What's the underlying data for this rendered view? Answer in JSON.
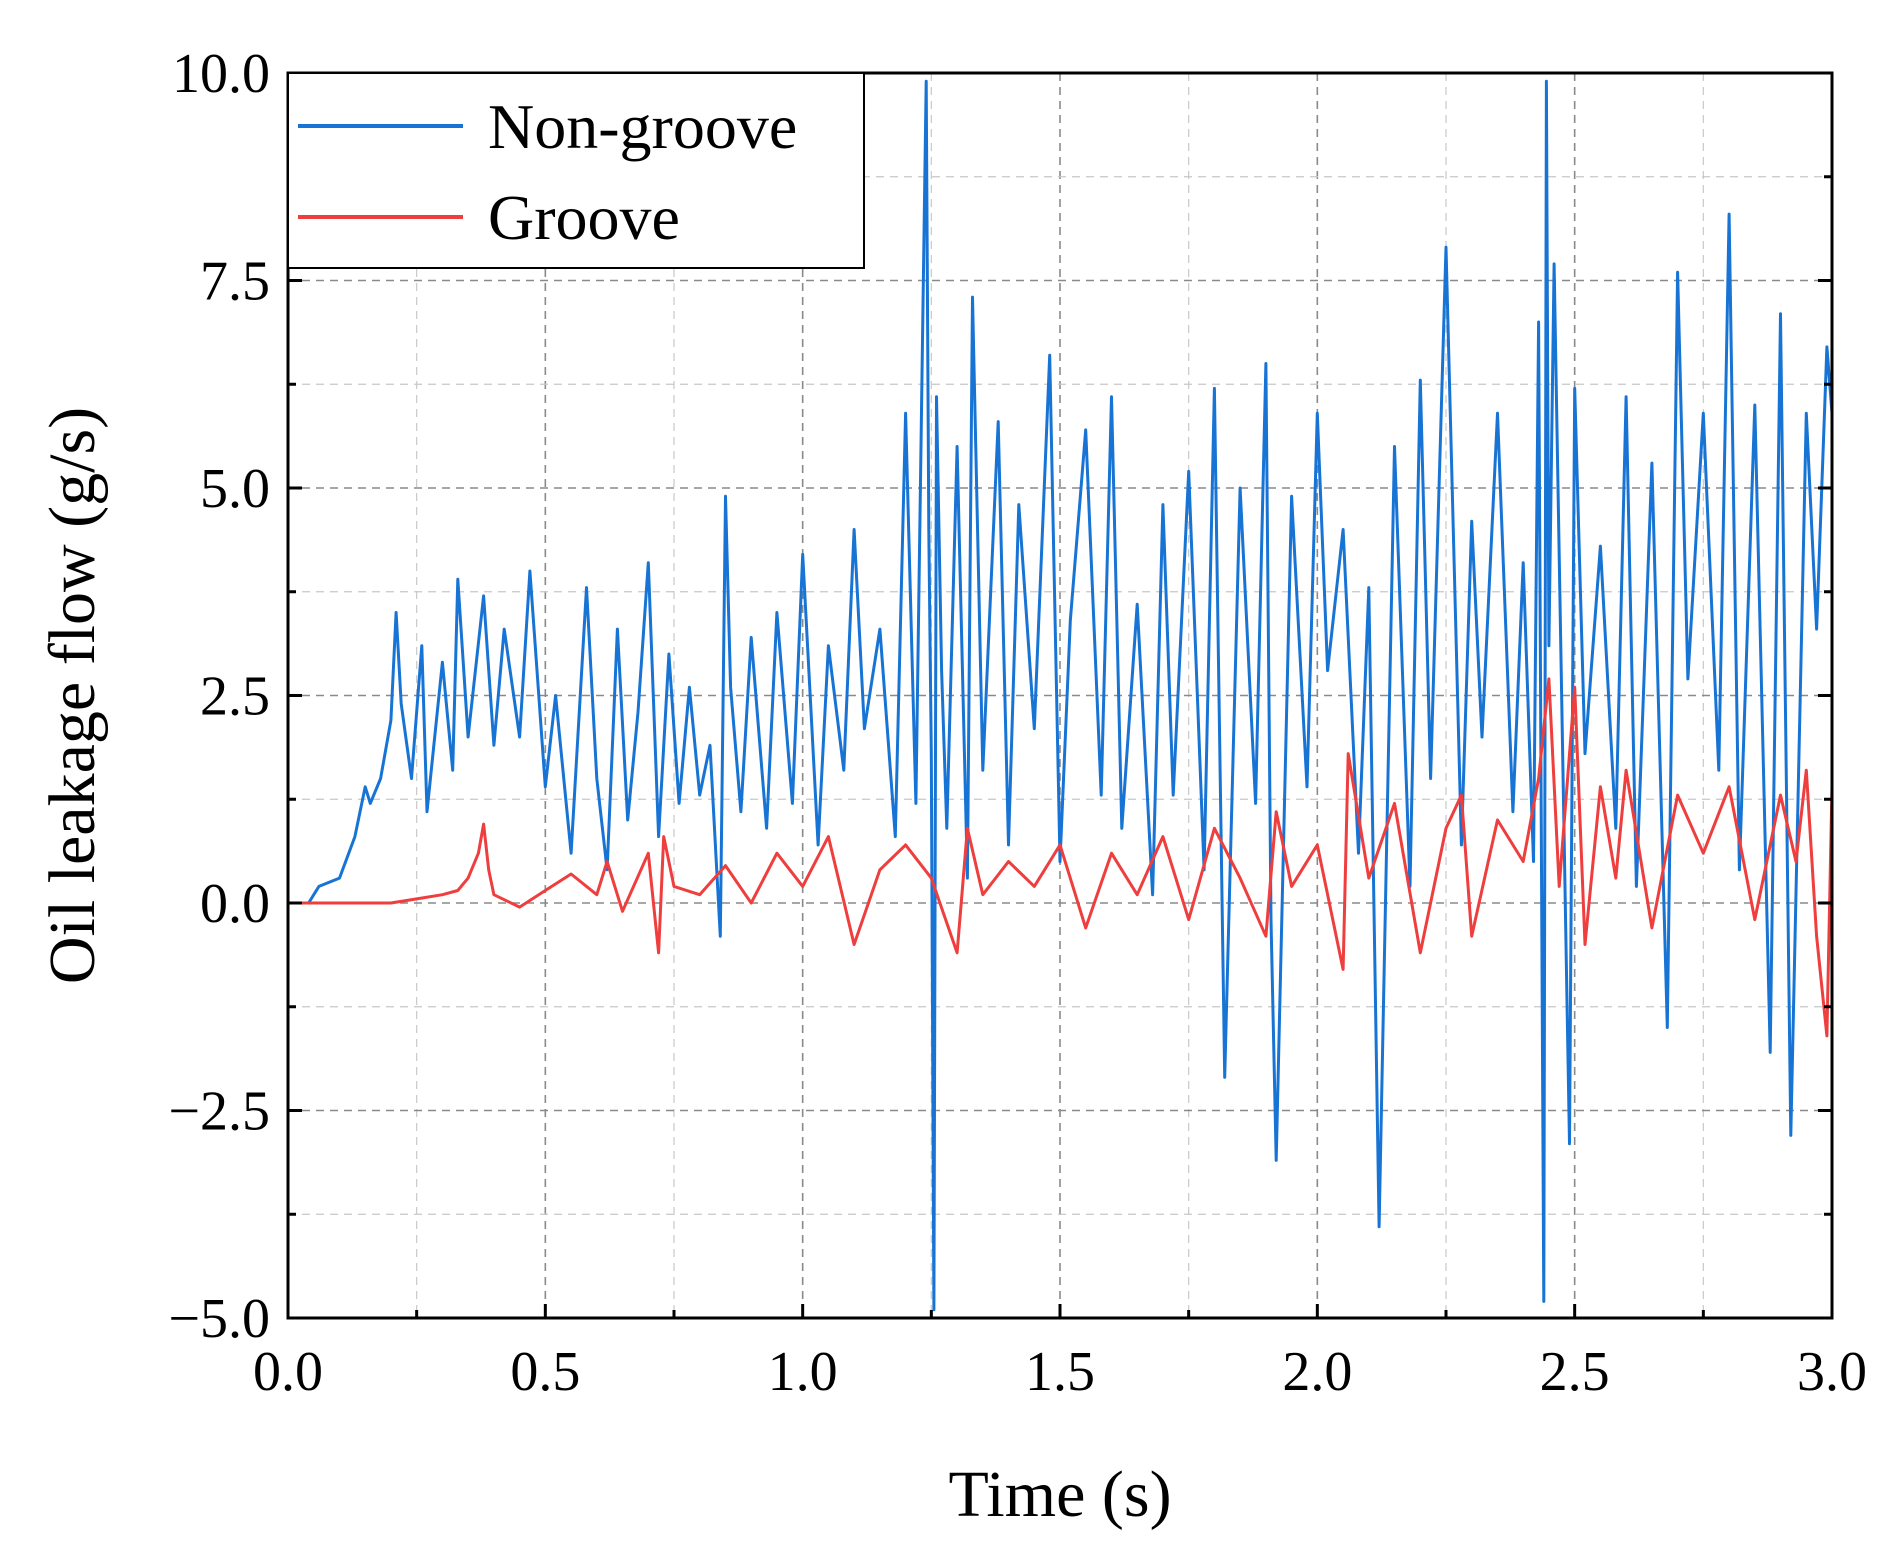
{
  "chart_data": {
    "type": "line",
    "title": "",
    "xlabel": "Time (s)",
    "ylabel": "Oil leakage flow (g/s)",
    "xlim": [
      0.0,
      3.0
    ],
    "ylim": [
      -5.0,
      10.0
    ],
    "xticks": [
      0.0,
      0.5,
      1.0,
      1.5,
      2.0,
      2.5,
      3.0
    ],
    "xtick_labels": [
      "0.0",
      "0.5",
      "1.0",
      "1.5",
      "2.0",
      "2.5",
      "3.0"
    ],
    "yticks": [
      -5.0,
      -2.5,
      0.0,
      2.5,
      5.0,
      7.5,
      10.0
    ],
    "ytick_labels": [
      "−5.0",
      "−2.5",
      "0.0",
      "2.5",
      "5.0",
      "7.5",
      "10.0"
    ],
    "grid": true,
    "legend_position": "top-left",
    "series": [
      {
        "name": "Non-groove",
        "color": "#1874d4",
        "x": [
          0.0,
          0.04,
          0.06,
          0.1,
          0.13,
          0.15,
          0.16,
          0.18,
          0.2,
          0.21,
          0.22,
          0.24,
          0.26,
          0.27,
          0.3,
          0.32,
          0.33,
          0.35,
          0.38,
          0.4,
          0.42,
          0.45,
          0.47,
          0.5,
          0.52,
          0.55,
          0.58,
          0.6,
          0.62,
          0.64,
          0.66,
          0.68,
          0.7,
          0.72,
          0.74,
          0.76,
          0.78,
          0.8,
          0.82,
          0.84,
          0.85,
          0.86,
          0.88,
          0.9,
          0.93,
          0.95,
          0.98,
          1.0,
          1.03,
          1.05,
          1.08,
          1.1,
          1.12,
          1.15,
          1.18,
          1.2,
          1.22,
          1.24,
          1.245,
          1.25,
          1.255,
          1.26,
          1.27,
          1.28,
          1.3,
          1.32,
          1.33,
          1.35,
          1.38,
          1.4,
          1.42,
          1.45,
          1.48,
          1.5,
          1.52,
          1.55,
          1.58,
          1.6,
          1.62,
          1.65,
          1.68,
          1.7,
          1.72,
          1.75,
          1.78,
          1.8,
          1.82,
          1.85,
          1.88,
          1.9,
          1.91,
          1.92,
          1.95,
          1.98,
          2.0,
          2.02,
          2.05,
          2.08,
          2.1,
          2.12,
          2.15,
          2.18,
          2.2,
          2.22,
          2.25,
          2.28,
          2.3,
          2.32,
          2.35,
          2.38,
          2.4,
          2.42,
          2.43,
          2.44,
          2.445,
          2.45,
          2.46,
          2.48,
          2.49,
          2.5,
          2.52,
          2.55,
          2.58,
          2.6,
          2.62,
          2.65,
          2.68,
          2.7,
          2.72,
          2.75,
          2.78,
          2.8,
          2.82,
          2.85,
          2.88,
          2.9,
          2.92,
          2.95,
          2.97,
          2.99,
          3.0
        ],
        "y": [
          0.0,
          0.0,
          0.2,
          0.3,
          0.8,
          1.4,
          1.2,
          1.5,
          2.2,
          3.5,
          2.4,
          1.5,
          3.1,
          1.1,
          2.9,
          1.6,
          3.9,
          2.0,
          3.7,
          1.9,
          3.3,
          2.0,
          4.0,
          1.4,
          2.5,
          0.6,
          3.8,
          1.5,
          0.4,
          3.3,
          1.0,
          2.3,
          4.1,
          0.8,
          3.0,
          1.2,
          2.6,
          1.3,
          1.9,
          -0.4,
          4.9,
          2.6,
          1.1,
          3.2,
          0.9,
          3.5,
          1.2,
          4.2,
          0.7,
          3.1,
          1.6,
          4.5,
          2.1,
          3.3,
          0.8,
          5.9,
          1.2,
          9.9,
          4.5,
          1.8,
          -4.9,
          6.1,
          2.8,
          0.9,
          5.5,
          0.3,
          7.3,
          1.6,
          5.8,
          0.7,
          4.8,
          2.1,
          6.6,
          0.5,
          3.4,
          5.7,
          1.3,
          6.1,
          0.9,
          3.6,
          0.1,
          4.8,
          1.3,
          5.2,
          0.4,
          6.2,
          -2.1,
          5.0,
          1.2,
          6.5,
          -0.2,
          -3.1,
          4.9,
          1.4,
          5.9,
          2.8,
          4.5,
          0.6,
          3.8,
          -3.9,
          5.5,
          0.2,
          6.3,
          1.5,
          7.9,
          0.7,
          4.6,
          2.0,
          5.9,
          1.1,
          4.1,
          0.5,
          7.0,
          -4.8,
          9.9,
          3.1,
          7.7,
          0.6,
          -2.9,
          6.2,
          1.8,
          4.3,
          0.9,
          6.1,
          0.2,
          5.3,
          -1.5,
          7.6,
          2.7,
          5.9,
          1.6,
          8.3,
          0.4,
          6.0,
          -1.8,
          7.1,
          -2.8,
          5.9,
          3.3,
          6.7,
          5.9
        ]
      },
      {
        "name": "Groove",
        "color": "#ee3e3e",
        "x": [
          0.0,
          0.1,
          0.2,
          0.25,
          0.3,
          0.33,
          0.35,
          0.37,
          0.38,
          0.39,
          0.4,
          0.45,
          0.5,
          0.55,
          0.6,
          0.62,
          0.65,
          0.7,
          0.72,
          0.73,
          0.75,
          0.8,
          0.85,
          0.9,
          0.95,
          1.0,
          1.05,
          1.1,
          1.15,
          1.2,
          1.25,
          1.3,
          1.32,
          1.35,
          1.4,
          1.45,
          1.5,
          1.55,
          1.6,
          1.65,
          1.7,
          1.75,
          1.8,
          1.85,
          1.9,
          1.92,
          1.95,
          2.0,
          2.05,
          2.06,
          2.1,
          2.15,
          2.2,
          2.25,
          2.28,
          2.3,
          2.35,
          2.4,
          2.43,
          2.45,
          2.47,
          2.5,
          2.52,
          2.55,
          2.58,
          2.6,
          2.65,
          2.7,
          2.75,
          2.8,
          2.85,
          2.9,
          2.93,
          2.95,
          2.97,
          2.99,
          3.0
        ],
        "y": [
          0.0,
          0.0,
          0.0,
          0.05,
          0.1,
          0.15,
          0.3,
          0.6,
          0.95,
          0.4,
          0.1,
          -0.05,
          0.15,
          0.35,
          0.1,
          0.5,
          -0.1,
          0.6,
          -0.6,
          0.8,
          0.2,
          0.1,
          0.45,
          0.0,
          0.6,
          0.2,
          0.8,
          -0.5,
          0.4,
          0.7,
          0.3,
          -0.6,
          0.9,
          0.1,
          0.5,
          0.2,
          0.7,
          -0.3,
          0.6,
          0.1,
          0.8,
          -0.2,
          0.9,
          0.3,
          -0.4,
          1.1,
          0.2,
          0.7,
          -0.8,
          1.8,
          0.3,
          1.2,
          -0.6,
          0.9,
          1.3,
          -0.4,
          1.0,
          0.5,
          1.5,
          2.7,
          0.2,
          2.6,
          -0.5,
          1.4,
          0.3,
          1.6,
          -0.3,
          1.3,
          0.6,
          1.4,
          -0.2,
          1.3,
          0.5,
          1.6,
          -0.4,
          -1.6,
          1.4
        ]
      }
    ]
  }
}
